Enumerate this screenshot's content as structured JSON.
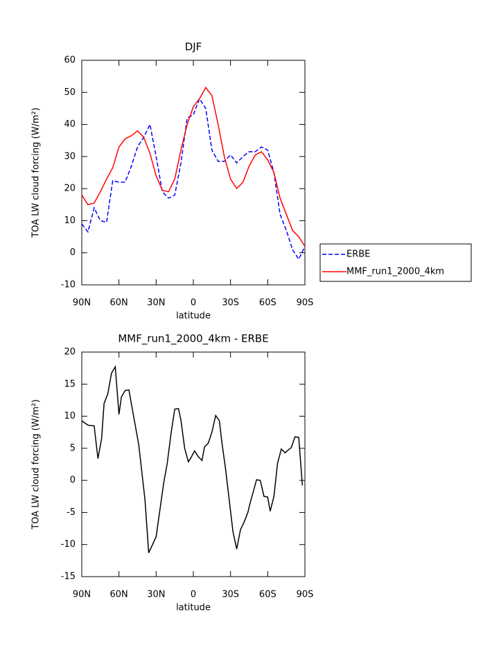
{
  "chart_data": [
    {
      "type": "line",
      "title": "DJF",
      "x_label": "latitude",
      "y_label": "TOA LW cloud forcing (W/m²)",
      "x": [
        90,
        85,
        80,
        75,
        70,
        65,
        60,
        55,
        50,
        45,
        40,
        35,
        30,
        25,
        20,
        15,
        10,
        5,
        0,
        -5,
        -10,
        -15,
        -20,
        -25,
        -30,
        -35,
        -40,
        -45,
        -50,
        -55,
        -60,
        -65,
        -70,
        -75,
        -80,
        -85,
        -90
      ],
      "series": [
        {
          "name": "ERBE",
          "color": "#0000ff",
          "style": "dashed",
          "values": [
            9,
            6.5,
            14,
            10,
            9.5,
            22.5,
            22,
            22,
            27,
            33,
            36,
            40,
            30,
            19,
            17,
            18,
            28,
            42,
            43,
            48,
            45,
            32,
            28.5,
            28.5,
            30.5,
            28,
            30,
            31.5,
            31.5,
            33,
            32,
            25,
            12,
            7,
            1,
            -2,
            2
          ]
        },
        {
          "name": "MMF_run1_2000_4km",
          "color": "#ff0000",
          "style": "solid",
          "values": [
            18,
            15,
            15.5,
            19,
            23,
            26.5,
            33,
            35.5,
            36.5,
            38,
            36,
            31,
            24,
            19.5,
            19,
            23,
            32,
            40,
            45.5,
            48,
            51.5,
            49,
            40,
            30,
            23,
            20,
            22,
            27,
            30.5,
            31.5,
            29,
            25,
            17,
            12,
            7,
            5,
            2
          ]
        }
      ],
      "xlim": [
        90,
        -90
      ],
      "xticks": [
        {
          "value": 90,
          "label": "90N"
        },
        {
          "value": 60,
          "label": "60N"
        },
        {
          "value": 30,
          "label": "30N"
        },
        0,
        {
          "value": -30,
          "label": "30S"
        },
        {
          "value": -60,
          "label": "60S"
        },
        {
          "value": -90,
          "label": "90S"
        }
      ],
      "ylim": [
        -10,
        60
      ],
      "yticks": [
        -10,
        0,
        10,
        20,
        30,
        40,
        50,
        60
      ],
      "grid": false,
      "legend": "right"
    },
    {
      "type": "line",
      "title": "MMF_run1_2000_4km - ERBE",
      "x_label": "latitude",
      "y_label": "TOA LW cloud forcing (W/m²)",
      "x": [
        90,
        85,
        80,
        77,
        74,
        72,
        69,
        66,
        63,
        60,
        58,
        55,
        52,
        44,
        39,
        36,
        30,
        24,
        21,
        18,
        15,
        12,
        10,
        7,
        4,
        2,
        -1,
        -4,
        -7,
        -9,
        -12,
        -15,
        -18,
        -21,
        -23,
        -26,
        -32,
        -35,
        -38,
        -41,
        -44,
        -46,
        -49,
        -51,
        -54,
        -57,
        -60,
        -62,
        -65,
        -68,
        -71,
        -74,
        -77,
        -79,
        -82,
        -85,
        -88
      ],
      "series": [
        {
          "color": "#000000",
          "style": "solid",
          "values": [
            9.3,
            8.6,
            8.5,
            3.4,
            6.5,
            12,
            13.5,
            16.7,
            17.7,
            10.3,
            13,
            14,
            14.1,
            5.5,
            -3,
            -11.3,
            -8.8,
            -0.5,
            2.7,
            7.3,
            11.1,
            11.2,
            9.4,
            5,
            2.9,
            3.5,
            4.6,
            3.7,
            3.1,
            5.2,
            5.8,
            7.5,
            10.1,
            9.3,
            6,
            1.8,
            -8,
            -10.7,
            -7.7,
            -6.5,
            -5,
            -3.4,
            -1.3,
            0.1,
            0,
            -2.5,
            -2.6,
            -4.8,
            -2.5,
            2.7,
            4.9,
            4.3,
            4.8,
            5.1,
            6.8,
            6.7,
            -0.8
          ]
        }
      ],
      "xlim": [
        90,
        -90
      ],
      "xticks": [
        {
          "value": 90,
          "label": "90N"
        },
        {
          "value": 60,
          "label": "60N"
        },
        {
          "value": 30,
          "label": "30N"
        },
        0,
        {
          "value": -30,
          "label": "30S"
        },
        {
          "value": -60,
          "label": "60S"
        },
        {
          "value": -90,
          "label": "90S"
        }
      ],
      "ylim": [
        -15,
        20
      ],
      "yticks": [
        -15,
        -10,
        -5,
        0,
        5,
        10,
        15,
        20
      ],
      "grid": false
    }
  ]
}
